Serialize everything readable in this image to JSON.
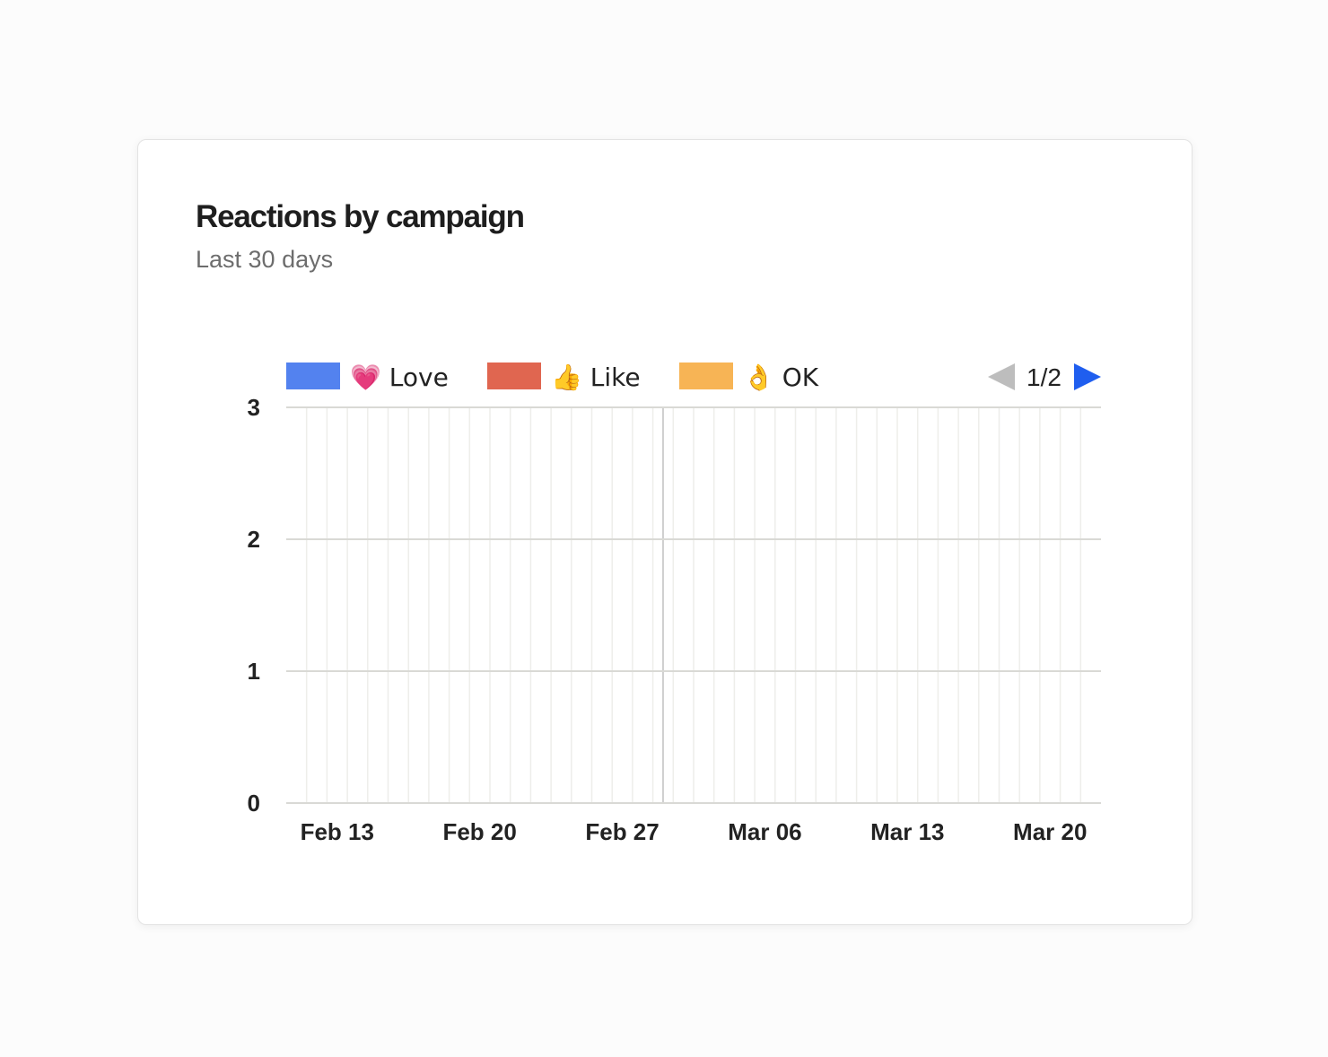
{
  "card": {
    "title": "Reactions by campaign",
    "subtitle": "Last 30 days"
  },
  "legend": {
    "items": [
      {
        "label": "💗 Love",
        "color": "#5382ef"
      },
      {
        "label": "👍 Like",
        "color": "#e06650"
      },
      {
        "label": "👌 OK",
        "color": "#f7b455"
      }
    ],
    "page": "1/2",
    "prev_color": "#bdbdbd",
    "next_color": "#1f5eef"
  },
  "chart_data": {
    "type": "bar",
    "title": "Reactions by campaign",
    "subtitle": "Last 30 days",
    "x_start": "2025-02-10",
    "x_end": "2025-03-22",
    "x_ticks": [
      "Feb 13",
      "Feb 20",
      "Feb 27",
      "Mar 06",
      "Mar 13",
      "Mar 20"
    ],
    "y_ticks": [
      0,
      1,
      2,
      3
    ],
    "ylim": [
      0,
      3
    ],
    "series": [
      {
        "name": "💗 Love",
        "color": "#5382ef",
        "values": []
      },
      {
        "name": "👍 Like",
        "color": "#e06650",
        "values": []
      },
      {
        "name": "👌 OK",
        "color": "#f7b455",
        "values": []
      }
    ],
    "grid": true,
    "legend_position": "top"
  }
}
